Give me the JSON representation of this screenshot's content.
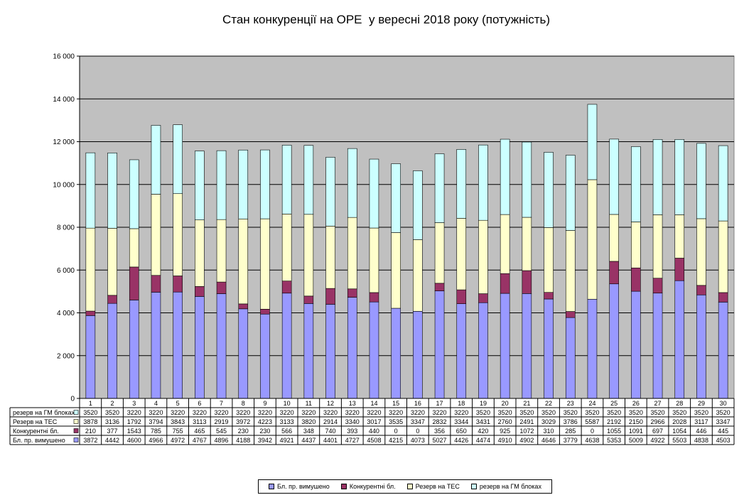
{
  "chart_data": {
    "type": "bar",
    "stacked": true,
    "title": "Стан конкуренції на ОРЕ  у вересні 2018 року (потужність)",
    "categories": [
      "1",
      "2",
      "3",
      "4",
      "5",
      "6",
      "7",
      "8",
      "9",
      "10",
      "11",
      "12",
      "13",
      "14",
      "15",
      "16",
      "17",
      "18",
      "19",
      "20",
      "21",
      "22",
      "23",
      "24",
      "25",
      "26",
      "27",
      "28",
      "29",
      "30"
    ],
    "ylim": [
      0,
      16000
    ],
    "yticks": [
      "0",
      "2 000",
      "4 000",
      "6 000",
      "8 000",
      "10 000",
      "12 000",
      "14 000",
      "16 000"
    ],
    "grid": true,
    "legend_position": "bottom",
    "series": [
      {
        "name": "Бл. пр. вимушено",
        "color": "#9999ff",
        "values": [
          3872,
          4442,
          4600,
          4966,
          4972,
          4767,
          4896,
          4188,
          3942,
          4921,
          4437,
          4401,
          4727,
          4508,
          4215,
          4073,
          5027,
          4426,
          4474,
          4910,
          4902,
          4646,
          3779,
          4638,
          5353,
          5009,
          4922,
          5503,
          4838,
          4503
        ]
      },
      {
        "name": "Конкурентні бл.",
        "color": "#993366",
        "values": [
          210,
          377,
          1543,
          785,
          755,
          465,
          545,
          230,
          230,
          566,
          348,
          740,
          393,
          440,
          0,
          0,
          356,
          650,
          420,
          925,
          1072,
          310,
          285,
          0,
          1055,
          1091,
          697,
          1054,
          446,
          445
        ]
      },
      {
        "name": "Резерв на ТЕС",
        "color": "#ffffcc",
        "values": [
          3878,
          3136,
          1792,
          3794,
          3843,
          3113,
          2919,
          3972,
          4223,
          3133,
          3820,
          2914,
          3340,
          3017,
          3535,
          3347,
          2832,
          3344,
          3431,
          2760,
          2491,
          3029,
          3786,
          5587,
          2192,
          2150,
          2966,
          2028,
          3117,
          3347
        ]
      },
      {
        "name": "резерв на ГМ блоках",
        "color": "#ccffff",
        "values": [
          3520,
          3520,
          3220,
          3220,
          3220,
          3220,
          3220,
          3220,
          3220,
          3220,
          3220,
          3220,
          3220,
          3220,
          3220,
          3220,
          3220,
          3220,
          3520,
          3520,
          3520,
          3520,
          3520,
          3520,
          3520,
          3520,
          3520,
          3520,
          3520,
          3520
        ]
      }
    ],
    "table_row_labels": [
      "резерв на ГМ блоках",
      "Резерв на ТЕС",
      "Конкурентні бл.",
      "Бл. пр. вимушено"
    ]
  },
  "colors": {
    "plot_background": "#c0c0c0",
    "gridline": "#000000"
  }
}
